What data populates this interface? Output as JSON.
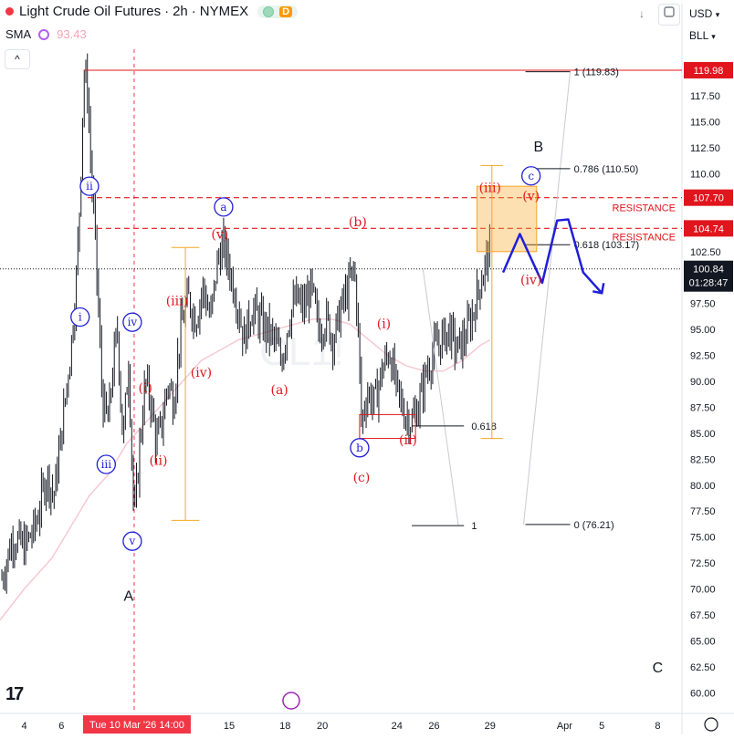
{
  "header": {
    "symbol": "Light Crude Oil Futures",
    "interval": "2h",
    "exchange": "NYMEX",
    "separator": "·",
    "badge_d": "D",
    "sma_label": "SMA",
    "sma_value": "93.43",
    "currency": "USD",
    "bll": "BLL",
    "collapse_glyph": "^",
    "down_arrow_glyph": "↓"
  },
  "watermark": "CL1!",
  "colors": {
    "bull": "#089981",
    "bear": "#f23645",
    "elliott_blue": "#1f1fd8",
    "elliott_red": "#e0151d",
    "fib_orange": "#f5a623",
    "resistance": "#e0151d",
    "sma": "#f7c9d2",
    "price_label_bg": "#131722"
  },
  "chart_data": {
    "type": "candlestick",
    "title": "Light Crude Oil Futures · 2h · NYMEX",
    "ylim": [
      58,
      122
    ],
    "y_ticks": [
      60.0,
      62.5,
      65.0,
      67.5,
      70.0,
      72.5,
      75.0,
      77.5,
      80.0,
      82.5,
      85.0,
      87.5,
      90.0,
      92.5,
      95.0,
      97.5,
      100.0,
      102.5,
      105.0,
      107.5,
      110.0,
      112.5,
      115.0,
      117.5
    ],
    "x_ticks": [
      {
        "label": "4",
        "d": 4
      },
      {
        "label": "6",
        "d": 6
      },
      {
        "label": "15",
        "d": 15
      },
      {
        "label": "18",
        "d": 18
      },
      {
        "label": "20",
        "d": 20
      },
      {
        "label": "24",
        "d": 24
      },
      {
        "label": "26",
        "d": 26
      },
      {
        "label": "29",
        "d": 29
      },
      {
        "label": "Apr",
        "d": 33
      },
      {
        "label": "5",
        "d": 35
      },
      {
        "label": "8",
        "d": 38
      }
    ],
    "xlim_days": [
      2.7,
      39.3
    ],
    "price_path": [
      [
        2.8,
        71
      ],
      [
        3.4,
        75
      ],
      [
        4.0,
        74
      ],
      [
        4.6,
        76
      ],
      [
        5.2,
        81
      ],
      [
        5.6,
        79
      ],
      [
        6.0,
        85
      ],
      [
        6.3,
        90
      ],
      [
        6.5,
        93
      ],
      [
        6.8,
        100
      ],
      [
        7.0,
        108
      ],
      [
        7.2,
        119.8
      ],
      [
        7.4,
        118
      ],
      [
        7.6,
        110
      ],
      [
        7.8,
        104
      ],
      [
        8.0,
        96
      ],
      [
        8.2,
        88
      ],
      [
        8.5,
        86
      ],
      [
        8.8,
        92
      ],
      [
        9.0,
        95
      ],
      [
        9.3,
        84
      ],
      [
        9.6,
        92
      ],
      [
        9.9,
        76.2
      ],
      [
        10.2,
        84
      ],
      [
        10.5,
        90
      ],
      [
        10.8,
        88
      ],
      [
        11.1,
        84
      ],
      [
        11.4,
        86
      ],
      [
        11.7,
        90
      ],
      [
        12.0,
        88
      ],
      [
        12.4,
        95
      ],
      [
        12.8,
        98
      ],
      [
        13.2,
        96
      ],
      [
        13.6,
        99
      ],
      [
        14.0,
        96
      ],
      [
        14.4,
        102
      ],
      [
        14.7,
        103
      ],
      [
        15.0,
        101
      ],
      [
        15.4,
        98
      ],
      [
        15.8,
        94
      ],
      [
        16.2,
        97
      ],
      [
        16.6,
        96
      ],
      [
        17.0,
        95
      ],
      [
        17.4,
        94
      ],
      [
        17.8,
        92
      ],
      [
        18.2,
        96
      ],
      [
        18.6,
        98
      ],
      [
        19.0,
        97
      ],
      [
        19.4,
        99
      ],
      [
        19.8,
        95
      ],
      [
        20.2,
        96
      ],
      [
        20.6,
        94
      ],
      [
        21.0,
        97
      ],
      [
        21.4,
        99
      ],
      [
        21.7,
        101
      ],
      [
        21.9,
        96
      ],
      [
        22.1,
        86
      ],
      [
        22.4,
        89
      ],
      [
        22.8,
        88
      ],
      [
        23.2,
        91
      ],
      [
        23.6,
        93
      ],
      [
        24.0,
        89
      ],
      [
        24.4,
        87
      ],
      [
        24.8,
        86
      ],
      [
        25.2,
        88
      ],
      [
        25.6,
        91
      ],
      [
        26.0,
        93
      ],
      [
        26.4,
        94
      ],
      [
        26.8,
        95
      ],
      [
        27.2,
        93
      ],
      [
        27.6,
        94
      ],
      [
        28.0,
        96
      ],
      [
        28.4,
        99
      ],
      [
        28.7,
        101
      ],
      [
        29.0,
        103
      ]
    ],
    "sma_path": [
      [
        2.7,
        67
      ],
      [
        4.0,
        70
      ],
      [
        5.5,
        73
      ],
      [
        6.5,
        76
      ],
      [
        7.5,
        79
      ],
      [
        8.5,
        81
      ],
      [
        9.5,
        84
      ],
      [
        10.5,
        86
      ],
      [
        11.5,
        88
      ],
      [
        12.5,
        90
      ],
      [
        13.5,
        92
      ],
      [
        14.5,
        93
      ],
      [
        15.5,
        94
      ],
      [
        16.5,
        94.5
      ],
      [
        17.5,
        95
      ],
      [
        18.5,
        95.5
      ],
      [
        19.5,
        96
      ],
      [
        20.5,
        96
      ],
      [
        21.5,
        95.5
      ],
      [
        22.5,
        94
      ],
      [
        23.5,
        92.5
      ],
      [
        24.5,
        91.5
      ],
      [
        25.5,
        91
      ],
      [
        26.5,
        91
      ],
      [
        27.5,
        92
      ],
      [
        28.5,
        93.5
      ],
      [
        29.0,
        94
      ]
    ],
    "forecast_path": [
      [
        29.7,
        100.5
      ],
      [
        30.6,
        104.2
      ],
      [
        31.8,
        99.5
      ],
      [
        32.6,
        105.5
      ],
      [
        33.2,
        105.6
      ],
      [
        34.0,
        100.5
      ],
      [
        35.0,
        98.5
      ]
    ],
    "fib_levels": [
      {
        "label": "1 (119.83)",
        "value": 119.83
      },
      {
        "label": "0.786 (110.50)",
        "value": 110.5
      },
      {
        "label": "0.618 (103.17)",
        "value": 103.17
      },
      {
        "label": "0 (76.21)",
        "value": 76.21
      }
    ],
    "fib_left_labels": [
      {
        "label": "0.618",
        "value": 85.7
      },
      {
        "label": "1",
        "value": 76.1
      }
    ],
    "resistance": [
      {
        "label": "RESISTANCE",
        "value": 107.7
      },
      {
        "label": "RESISTANCE",
        "value": 104.74
      }
    ],
    "top_line_value": 119.98,
    "last_price": 100.84,
    "countdown": "01:28:47",
    "price_labels": [
      {
        "text": "119.98",
        "value": 119.98,
        "color": "#e0151d"
      },
      {
        "text": "107.70",
        "value": 107.7,
        "color": "#e0151d"
      },
      {
        "text": "104.74",
        "value": 104.74,
        "color": "#e0151d"
      }
    ],
    "wave_labels_blue": [
      {
        "text": "ii",
        "d": 7.5,
        "v": 108.8,
        "circle": true
      },
      {
        "text": "i",
        "d": 7.0,
        "v": 96.2,
        "circle": true
      },
      {
        "text": "iv",
        "d": 9.8,
        "v": 95.7,
        "circle": true
      },
      {
        "text": "iii",
        "d": 8.4,
        "v": 82.0,
        "circle": true
      },
      {
        "text": "v",
        "d": 9.8,
        "v": 74.6,
        "circle": true
      },
      {
        "text": "a",
        "d": 14.7,
        "v": 106.8,
        "circle": true
      },
      {
        "text": "b",
        "d": 22.0,
        "v": 83.6,
        "circle": true
      },
      {
        "text": "c",
        "d": 31.2,
        "v": 109.8,
        "circle": true
      }
    ],
    "wave_labels_red": [
      {
        "text": "(i)",
        "d": 10.5,
        "v": 89.3
      },
      {
        "text": "(ii)",
        "d": 11.2,
        "v": 82.3
      },
      {
        "text": "(iii)",
        "d": 12.2,
        "v": 97.7
      },
      {
        "text": "(iv)",
        "d": 13.5,
        "v": 90.8
      },
      {
        "text": "(v)",
        "d": 14.5,
        "v": 104.1
      },
      {
        "text": "(a)",
        "d": 17.7,
        "v": 89.1
      },
      {
        "text": "(b)",
        "d": 21.9,
        "v": 105.3
      },
      {
        "text": "(c)",
        "d": 22.1,
        "v": 80.7
      },
      {
        "text": "(i)",
        "d": 23.3,
        "v": 95.5
      },
      {
        "text": "(ii)",
        "d": 24.6,
        "v": 84.3
      },
      {
        "text": "(iii)",
        "d": 29.0,
        "v": 108.6
      },
      {
        "text": "(v)",
        "d": 31.2,
        "v": 107.8
      },
      {
        "text": "(iv)",
        "d": 31.2,
        "v": 99.7
      }
    ],
    "wave_labels_black": [
      {
        "text": "B",
        "d": 31.6,
        "v": 112.7
      },
      {
        "text": "A",
        "d": 9.6,
        "v": 69.4
      },
      {
        "text": "C",
        "d": 38.0,
        "v": 62.5
      }
    ],
    "date_label": "Tue 10 Mar '26   14:00"
  }
}
